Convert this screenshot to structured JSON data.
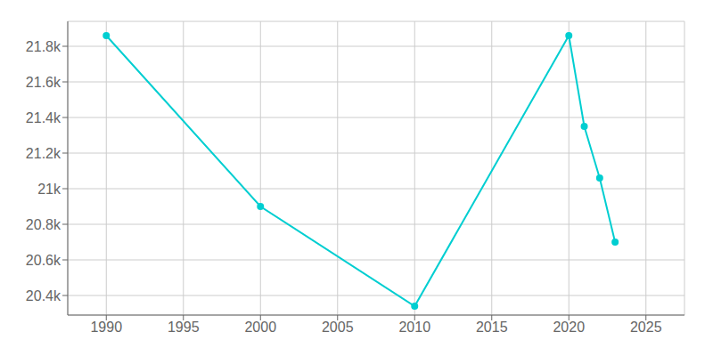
{
  "chart_data": {
    "type": "line",
    "x": [
      1990,
      2000,
      2010,
      2020,
      2021,
      2022,
      2023
    ],
    "values": [
      21860,
      20900,
      20340,
      21860,
      21350,
      21060,
      20700
    ],
    "color": "#00CED1",
    "marker": "circle",
    "xlim": [
      1987.5,
      2027.5
    ],
    "ylim": [
      20290,
      21940
    ],
    "xticks": [
      1990,
      1995,
      2000,
      2005,
      2010,
      2015,
      2020,
      2025
    ],
    "yticks": [
      {
        "value": 20400,
        "label": "20.4k"
      },
      {
        "value": 20600,
        "label": "20.6k"
      },
      {
        "value": 20800,
        "label": "20.8k"
      },
      {
        "value": 21000,
        "label": "21k"
      },
      {
        "value": 21200,
        "label": "21.2k"
      },
      {
        "value": 21400,
        "label": "21.4k"
      },
      {
        "value": 21600,
        "label": "21.6k"
      },
      {
        "value": 21800,
        "label": "21.8k"
      }
    ],
    "grid": true
  }
}
